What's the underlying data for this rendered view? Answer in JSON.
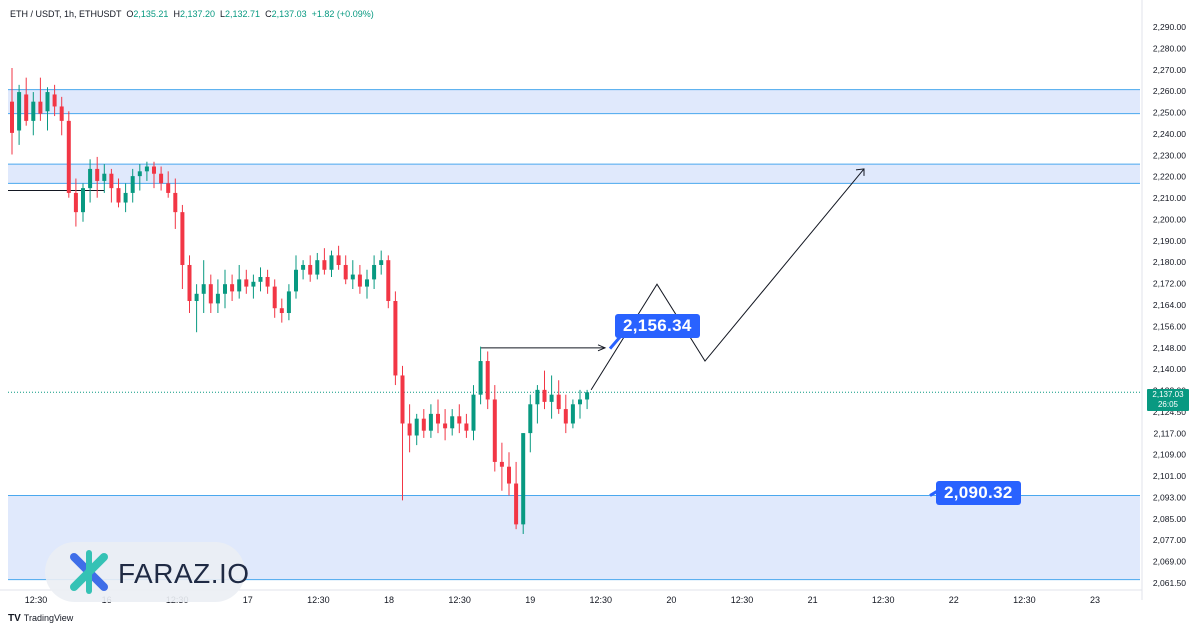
{
  "header": {
    "symbol": "ETH / USDT, 1h, ETHUSDT",
    "open_label": "O",
    "open": "2,135.21",
    "high_label": "H",
    "high": "2,137.20",
    "low_label": "L",
    "low": "2,132.71",
    "close_label": "C",
    "close": "2,137.03",
    "change": "+1.82 (+0.09%)"
  },
  "price_tag": {
    "price": "2,137.03",
    "countdown": "26:05"
  },
  "labels": {
    "target": "2,156.34",
    "support": "2,090.32"
  },
  "brand": {
    "name": "FARAZ.IO"
  },
  "footer": {
    "logo": "TV",
    "name": "TradingView"
  },
  "colors": {
    "up": "#089981",
    "down": "#f23645",
    "zone_fill": "#d6e1fb",
    "zone_border": "#4aa8ee",
    "label_bg": "#2962ff",
    "axis_text": "#131722"
  },
  "chart_data": {
    "type": "candlestick",
    "title": "ETH / USDT, 1h, ETHUSDT",
    "y_ticks": [
      "2,290.00",
      "2,280.00",
      "2,270.00",
      "2,260.00",
      "2,250.00",
      "2,240.00",
      "2,230.00",
      "2,220.00",
      "2,210.00",
      "2,200.00",
      "2,190.00",
      "2,180.00",
      "2,172.00",
      "2,164.00",
      "2,156.00",
      "2,148.00",
      "2,140.00",
      "2,132.00",
      "2,124.50",
      "2,117.00",
      "2,109.00",
      "2,101.00",
      "2,093.00",
      "2,085.00",
      "2,077.00",
      "2,069.00",
      "2,061.50"
    ],
    "x_ticks": [
      "12:30",
      "16",
      "12:30",
      "17",
      "12:30",
      "18",
      "12:30",
      "19",
      "12:30",
      "20",
      "12:30",
      "21",
      "12:30",
      "22",
      "12:30",
      "23"
    ],
    "ylim": [
      2058,
      2297
    ],
    "zones": [
      {
        "low": 2253,
        "high": 2263
      },
      {
        "low": 2224,
        "high": 2232
      },
      {
        "low": 2059,
        "high": 2094
      }
    ],
    "candles": [
      [
        2258,
        2272,
        2236,
        2245
      ],
      [
        2246,
        2265,
        2240,
        2262
      ],
      [
        2261,
        2268,
        2248,
        2250
      ],
      [
        2250,
        2262,
        2244,
        2258
      ],
      [
        2258,
        2268,
        2250,
        2253
      ],
      [
        2254,
        2264,
        2246,
        2262
      ],
      [
        2261,
        2265,
        2252,
        2256
      ],
      [
        2256,
        2260,
        2244,
        2250
      ],
      [
        2250,
        2254,
        2218,
        2220
      ],
      [
        2220,
        2226,
        2206,
        2212
      ],
      [
        2212,
        2224,
        2208,
        2222
      ],
      [
        2222,
        2234,
        2216,
        2230
      ],
      [
        2230,
        2235,
        2218,
        2225
      ],
      [
        2225,
        2232,
        2220,
        2228
      ],
      [
        2228,
        2230,
        2216,
        2222
      ],
      [
        2222,
        2226,
        2214,
        2216
      ],
      [
        2216,
        2224,
        2212,
        2220
      ],
      [
        2220,
        2230,
        2216,
        2227
      ],
      [
        2227,
        2232,
        2221,
        2229
      ],
      [
        2229,
        2233,
        2225,
        2231
      ],
      [
        2231,
        2233,
        2222,
        2228
      ],
      [
        2228,
        2231,
        2221,
        2224
      ],
      [
        2224,
        2229,
        2218,
        2220
      ],
      [
        2220,
        2226,
        2205,
        2212
      ],
      [
        2212,
        2215,
        2180,
        2190
      ],
      [
        2190,
        2194,
        2170,
        2175
      ],
      [
        2175,
        2182,
        2162,
        2178
      ],
      [
        2178,
        2192,
        2170,
        2182
      ],
      [
        2182,
        2186,
        2170,
        2174
      ],
      [
        2174,
        2184,
        2170,
        2178
      ],
      [
        2178,
        2188,
        2172,
        2182
      ],
      [
        2182,
        2186,
        2175,
        2179
      ],
      [
        2179,
        2190,
        2176,
        2184
      ],
      [
        2184,
        2188,
        2178,
        2181
      ],
      [
        2181,
        2186,
        2176,
        2183
      ],
      [
        2183,
        2189,
        2179,
        2185
      ],
      [
        2185,
        2188,
        2178,
        2181
      ],
      [
        2181,
        2184,
        2168,
        2172
      ],
      [
        2172,
        2176,
        2166,
        2170
      ],
      [
        2170,
        2182,
        2167,
        2179
      ],
      [
        2179,
        2194,
        2176,
        2188
      ],
      [
        2188,
        2192,
        2184,
        2190
      ],
      [
        2190,
        2194,
        2183,
        2186
      ],
      [
        2186,
        2195,
        2184,
        2192
      ],
      [
        2192,
        2197,
        2186,
        2188
      ],
      [
        2188,
        2196,
        2185,
        2194
      ],
      [
        2194,
        2198,
        2188,
        2190
      ],
      [
        2190,
        2194,
        2182,
        2184
      ],
      [
        2184,
        2192,
        2180,
        2186
      ],
      [
        2186,
        2190,
        2178,
        2181
      ],
      [
        2181,
        2188,
        2176,
        2184
      ],
      [
        2184,
        2194,
        2180,
        2190
      ],
      [
        2190,
        2196,
        2186,
        2192
      ],
      [
        2192,
        2194,
        2172,
        2175
      ],
      [
        2175,
        2179,
        2140,
        2144
      ],
      [
        2144,
        2148,
        2092,
        2124
      ],
      [
        2124,
        2132,
        2112,
        2119
      ],
      [
        2119,
        2128,
        2115,
        2126
      ],
      [
        2126,
        2130,
        2118,
        2121
      ],
      [
        2121,
        2132,
        2118,
        2128
      ],
      [
        2128,
        2134,
        2120,
        2124
      ],
      [
        2124,
        2130,
        2117,
        2122
      ],
      [
        2122,
        2130,
        2119,
        2127
      ],
      [
        2127,
        2132,
        2120,
        2124
      ],
      [
        2124,
        2128,
        2118,
        2121
      ],
      [
        2121,
        2140,
        2117,
        2136
      ],
      [
        2136,
        2156,
        2132,
        2150
      ],
      [
        2150,
        2154,
        2130,
        2134
      ],
      [
        2134,
        2140,
        2104,
        2108
      ],
      [
        2108,
        2116,
        2096,
        2106
      ],
      [
        2106,
        2112,
        2094,
        2099
      ],
      [
        2099,
        2108,
        2080,
        2082
      ],
      [
        2082,
        2120,
        2078,
        2120
      ],
      [
        2120,
        2136,
        2112,
        2132
      ],
      [
        2132,
        2140,
        2124,
        2138
      ],
      [
        2138,
        2146,
        2130,
        2133
      ],
      [
        2133,
        2144,
        2126,
        2136
      ],
      [
        2136,
        2142,
        2128,
        2130
      ],
      [
        2130,
        2136,
        2120,
        2124
      ],
      [
        2124,
        2134,
        2122,
        2132
      ],
      [
        2132,
        2138,
        2126,
        2134
      ],
      [
        2134,
        2138,
        2130,
        2137
      ]
    ],
    "current_price": 2137.03
  }
}
